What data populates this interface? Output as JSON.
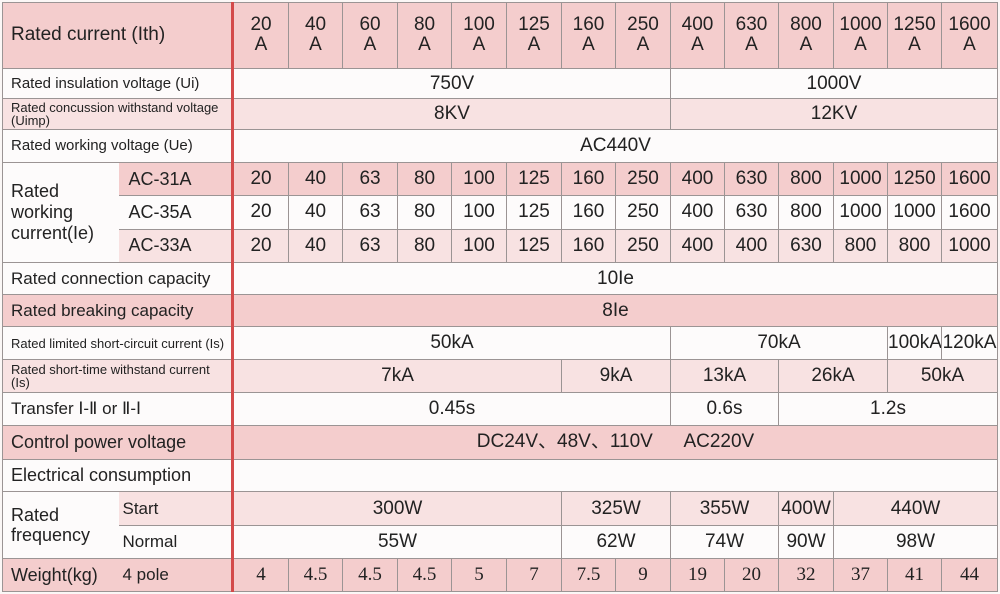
{
  "header": {
    "label": "Rated current (Ith)",
    "currents": [
      "20\nA",
      "40\nA",
      "60\nA",
      "80\nA",
      "100\nA",
      "125\nA",
      "160\nA",
      "250\nA",
      "400\nA",
      "630\nA",
      "800\nA",
      "1000\nA",
      "1250\nA",
      "1600\nA"
    ]
  },
  "insulation": {
    "label": "Rated insulation voltage (Ui)",
    "v1": "750V",
    "v2": "1000V"
  },
  "concussion": {
    "label": "Rated concussion withstand voltage (Uimp)",
    "v1": "8KV",
    "v2": "12KV"
  },
  "working_voltage": {
    "label": "Rated working voltage (Ue)",
    "value": "AC440V"
  },
  "working_current": {
    "label": "Rated working current(Ie)",
    "rows": [
      {
        "category": "AC-31A",
        "values": [
          "20",
          "40",
          "63",
          "80",
          "100",
          "125",
          "160",
          "250",
          "400",
          "630",
          "800",
          "1000",
          "1250",
          "1600"
        ]
      },
      {
        "category": "AC-35A",
        "values": [
          "20",
          "40",
          "63",
          "80",
          "100",
          "125",
          "160",
          "250",
          "400",
          "630",
          "800",
          "1000",
          "1000",
          "1600"
        ]
      },
      {
        "category": "AC-33A",
        "values": [
          "20",
          "40",
          "63",
          "80",
          "100",
          "125",
          "160",
          "250",
          "400",
          "400",
          "630",
          "800",
          "800",
          "1000"
        ]
      }
    ]
  },
  "connection": {
    "label": "Rated connection capacity",
    "value": "10Ie"
  },
  "breaking": {
    "label": "Rated breaking capacity",
    "value": "8Ie"
  },
  "short_circuit": {
    "label": "Rated limited short-circuit current (Is)",
    "v1": "50kA",
    "v2": "70kA",
    "v3": "100kA",
    "v4": "120kA"
  },
  "short_time": {
    "label": "Rated short-time withstand current (Is)",
    "v1": "7kA",
    "v2": "9kA",
    "v3": "13kA",
    "v4": "26kA",
    "v5": "50kA"
  },
  "transfer": {
    "label": "Transfer Ⅰ-Ⅱ or Ⅱ-Ⅰ",
    "v1": "0.45s",
    "v2": "0.6s",
    "v3": "1.2s"
  },
  "control_power": {
    "label": "Control power voltage",
    "value": "DC24V、48V、110V      AC220V"
  },
  "consumption": {
    "label": "Electrical consumption"
  },
  "frequency": {
    "label": "Rated frequency",
    "start": {
      "label": "Start",
      "v1": "300W",
      "v2": "325W",
      "v3": "355W",
      "v4": "400W",
      "v5": "440W"
    },
    "normal": {
      "label": "Normal",
      "v1": "55W",
      "v2": "62W",
      "v3": "74W",
      "v4": "90W",
      "v5": "98W"
    }
  },
  "weight": {
    "label": "Weight(kg)",
    "sub": "4 pole",
    "values": [
      "4",
      "4.5",
      "4.5",
      "4.5",
      "5",
      "7",
      "7.5",
      "9",
      "19",
      "20",
      "32",
      "37",
      "41",
      "44"
    ]
  },
  "colors": {
    "pink": "#f4cdcd",
    "pink_light": "#f8e2e2",
    "divider": "#d34a4a"
  }
}
